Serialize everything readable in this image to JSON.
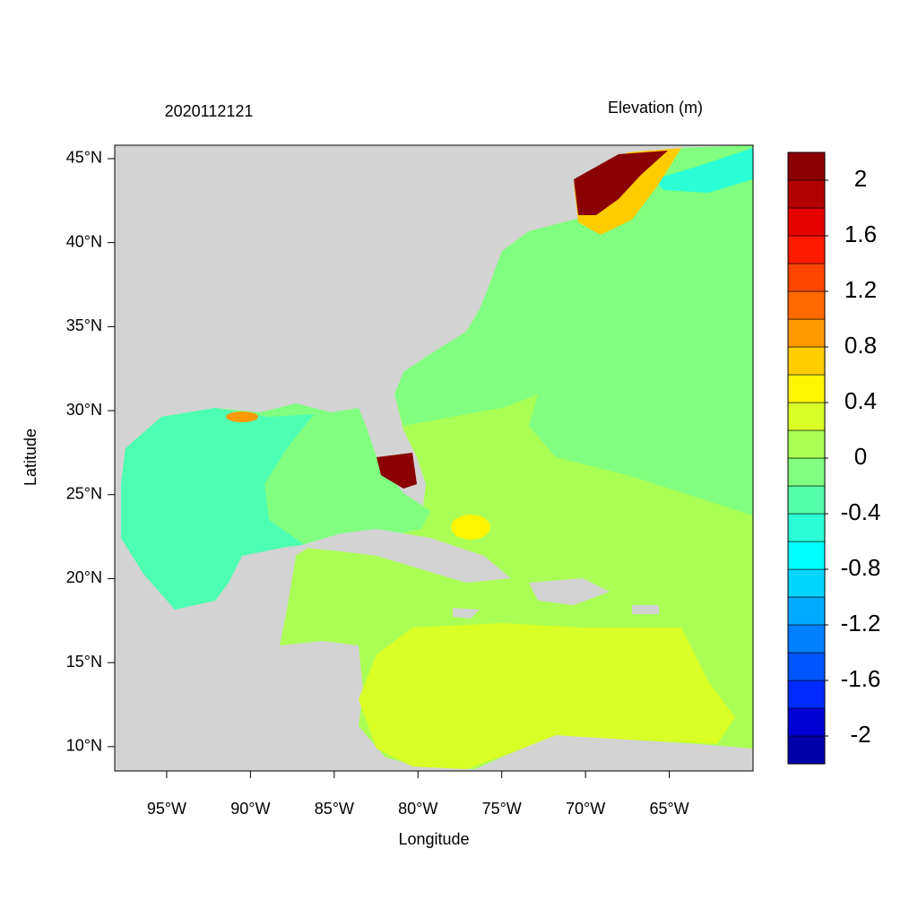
{
  "chart_data": {
    "type": "map",
    "title": "2020112121",
    "subtitle": "Elevation (m)",
    "x_label": "Longitude",
    "y_label": "Latitude",
    "xlim": [
      -98.1,
      -60
    ],
    "ylim": [
      8.55,
      45.8
    ],
    "xticks": [
      {
        "value": -95,
        "label": "95°W"
      },
      {
        "value": -90,
        "label": "90°W"
      },
      {
        "value": -85,
        "label": "85°W"
      },
      {
        "value": -80,
        "label": "80°W"
      },
      {
        "value": -75,
        "label": "75°W"
      },
      {
        "value": -70,
        "label": "70°W"
      },
      {
        "value": -65,
        "label": "65°W"
      }
    ],
    "yticks": [
      {
        "value": 10,
        "label": "10°N"
      },
      {
        "value": 15,
        "label": "15°N"
      },
      {
        "value": 20,
        "label": "20°N"
      },
      {
        "value": 25,
        "label": "25°N"
      },
      {
        "value": 30,
        "label": "30°N"
      },
      {
        "value": 35,
        "label": "35°N"
      },
      {
        "value": 40,
        "label": "40°N"
      },
      {
        "value": 45,
        "label": "45°N"
      }
    ],
    "colorbar": {
      "lim": [
        -2.2,
        2.2
      ],
      "ticks": [
        -2,
        -1.6,
        -1.2,
        -0.8,
        -0.4,
        0,
        0.4,
        0.8,
        1.2,
        1.6,
        2
      ],
      "colors": [
        "#0000aa",
        "#0000d5",
        "#002aff",
        "#0055ff",
        "#0080ff",
        "#00aaff",
        "#00d5ff",
        "#00ffff",
        "#2affd5",
        "#55ffaa",
        "#80ff80",
        "#aaff55",
        "#d9ff26",
        "#fff500",
        "#ffcc00",
        "#ff9900",
        "#ff6a00",
        "#ff4500",
        "#ff1a00",
        "#e60000",
        "#b30000",
        "#8b0000"
      ]
    }
  }
}
